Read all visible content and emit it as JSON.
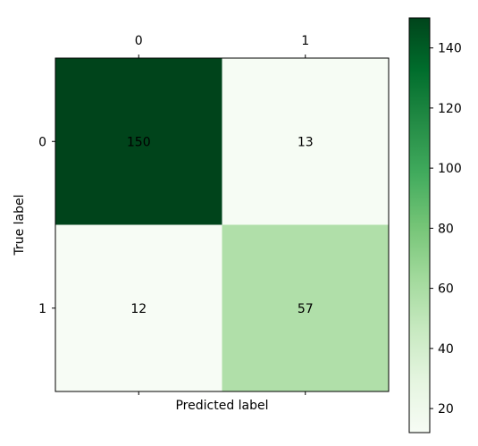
{
  "chart_data": {
    "type": "heatmap",
    "title": "",
    "xlabel": "Predicted label",
    "ylabel": "True label",
    "x_tick_labels": [
      "0",
      "1"
    ],
    "y_tick_labels": [
      "0",
      "1"
    ],
    "x_ticks_position": "top",
    "matrix": [
      [
        150,
        13
      ],
      [
        12,
        57
      ]
    ],
    "colormap": "Greens",
    "colormap_low": "#f7fcf5",
    "colormap_high": "#00441b",
    "colorbar": {
      "range": [
        12,
        150
      ],
      "tick_values": [
        20,
        40,
        60,
        80,
        100,
        120,
        140
      ],
      "tick_labels": [
        "20",
        "40",
        "60",
        "80",
        "100",
        "120",
        "140"
      ],
      "placement": "right"
    },
    "grid": false
  }
}
